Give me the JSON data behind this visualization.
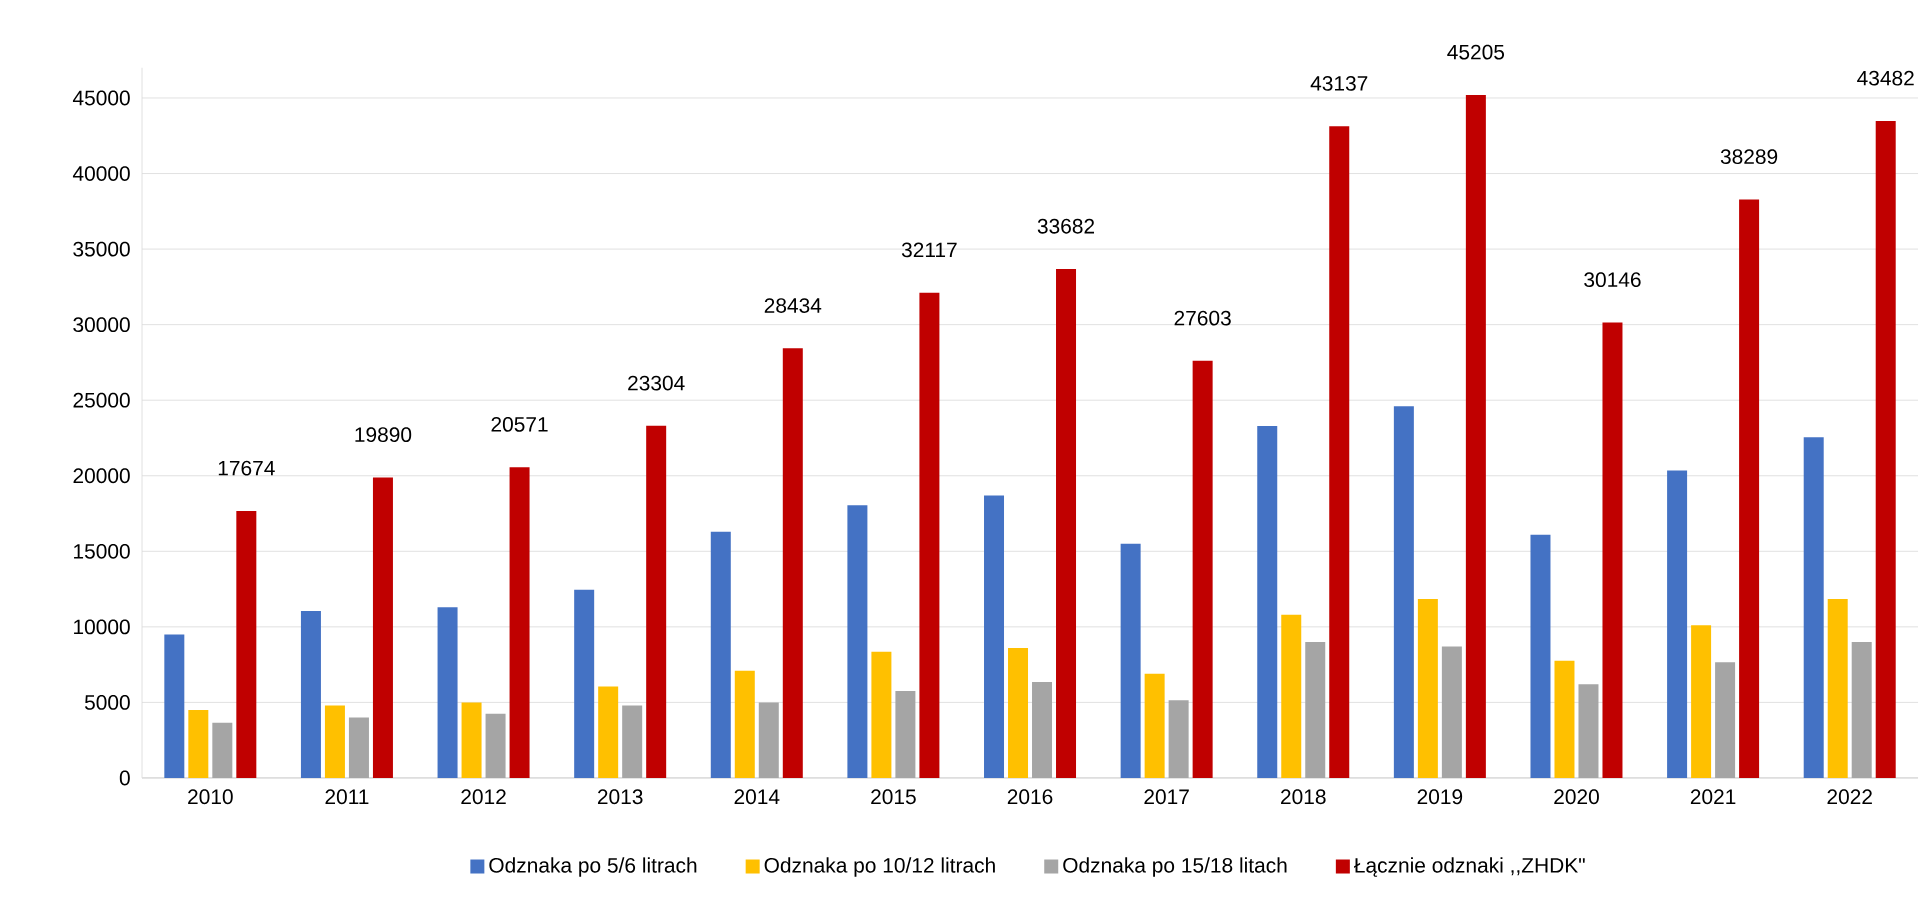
{
  "chart_data": {
    "type": "bar",
    "categories": [
      "2010",
      "2011",
      "2012",
      "2013",
      "2014",
      "2015",
      "2016",
      "2017",
      "2018",
      "2019",
      "2020",
      "2021",
      "2022"
    ],
    "series": [
      {
        "name": "Odznaka po 5/6 litrach",
        "color": "#4472c4",
        "values": [
          9500,
          11050,
          11300,
          12450,
          16300,
          18050,
          18700,
          15500,
          23300,
          24600,
          16100,
          20350,
          22550
        ]
      },
      {
        "name": "Odznaka po 10/12 litrach",
        "color": "#ffc000",
        "values": [
          4500,
          4800,
          5000,
          6050,
          7100,
          8350,
          8600,
          6900,
          10800,
          11850,
          7750,
          10100,
          11850
        ]
      },
      {
        "name": "Odznaka po 15/18 litach",
        "color": "#a5a5a5",
        "values": [
          3650,
          4000,
          4250,
          4800,
          5000,
          5750,
          6350,
          5150,
          9000,
          8700,
          6200,
          7650,
          9000
        ]
      },
      {
        "name": "Łącznie odznaki ,,ZHDK\"",
        "color": "#c00000",
        "values": [
          17674,
          19890,
          20571,
          23304,
          28434,
          32117,
          33682,
          27603,
          43137,
          45205,
          30146,
          38289,
          43482
        ],
        "value_labels": [
          "17674",
          "19890",
          "20571",
          "23304",
          "28434",
          "32117",
          "33682",
          "27603",
          "43137",
          "45205",
          "30146",
          "38289",
          "43482"
        ]
      }
    ],
    "ylim": [
      0,
      47000
    ],
    "yticks": [
      0,
      5000,
      10000,
      15000,
      20000,
      25000,
      30000,
      35000,
      40000,
      45000
    ],
    "grid": "y",
    "legend": "bottom"
  }
}
